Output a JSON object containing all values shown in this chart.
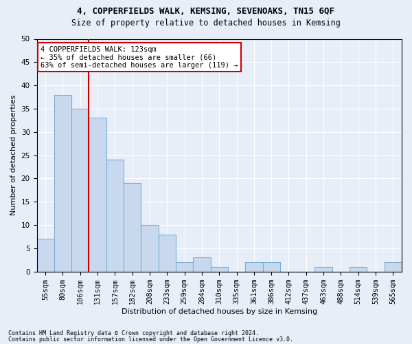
{
  "title1": "4, COPPERFIELDS WALK, KEMSING, SEVENOAKS, TN15 6QF",
  "title2": "Size of property relative to detached houses in Kemsing",
  "xlabel": "Distribution of detached houses by size in Kemsing",
  "ylabel": "Number of detached properties",
  "bar_color": "#c8d9ee",
  "bar_edge_color": "#7aafd4",
  "categories": [
    "55sqm",
    "80sqm",
    "106sqm",
    "131sqm",
    "157sqm",
    "182sqm",
    "208sqm",
    "233sqm",
    "259sqm",
    "284sqm",
    "310sqm",
    "335sqm",
    "361sqm",
    "386sqm",
    "412sqm",
    "437sqm",
    "463sqm",
    "488sqm",
    "514sqm",
    "539sqm",
    "565sqm"
  ],
  "values": [
    7,
    38,
    35,
    33,
    24,
    19,
    10,
    8,
    2,
    3,
    1,
    0,
    2,
    2,
    0,
    0,
    1,
    0,
    1,
    0,
    2
  ],
  "vline_x_idx": 2.5,
  "vline_color": "#cc0000",
  "annotation_text": "4 COPPERFIELDS WALK: 123sqm\n← 35% of detached houses are smaller (66)\n63% of semi-detached houses are larger (119) →",
  "annotation_box_color": "#ffffff",
  "annotation_box_edge": "#cc0000",
  "ylim": [
    0,
    50
  ],
  "yticks": [
    0,
    5,
    10,
    15,
    20,
    25,
    30,
    35,
    40,
    45,
    50
  ],
  "footer1": "Contains HM Land Registry data © Crown copyright and database right 2024.",
  "footer2": "Contains public sector information licensed under the Open Government Licence v3.0.",
  "background_color": "#e8eef8",
  "grid_color": "#ffffff",
  "title1_fontsize": 9,
  "title2_fontsize": 8.5,
  "xlabel_fontsize": 8,
  "ylabel_fontsize": 8,
  "tick_fontsize": 7.5,
  "footer_fontsize": 6,
  "ann_fontsize": 7.5
}
